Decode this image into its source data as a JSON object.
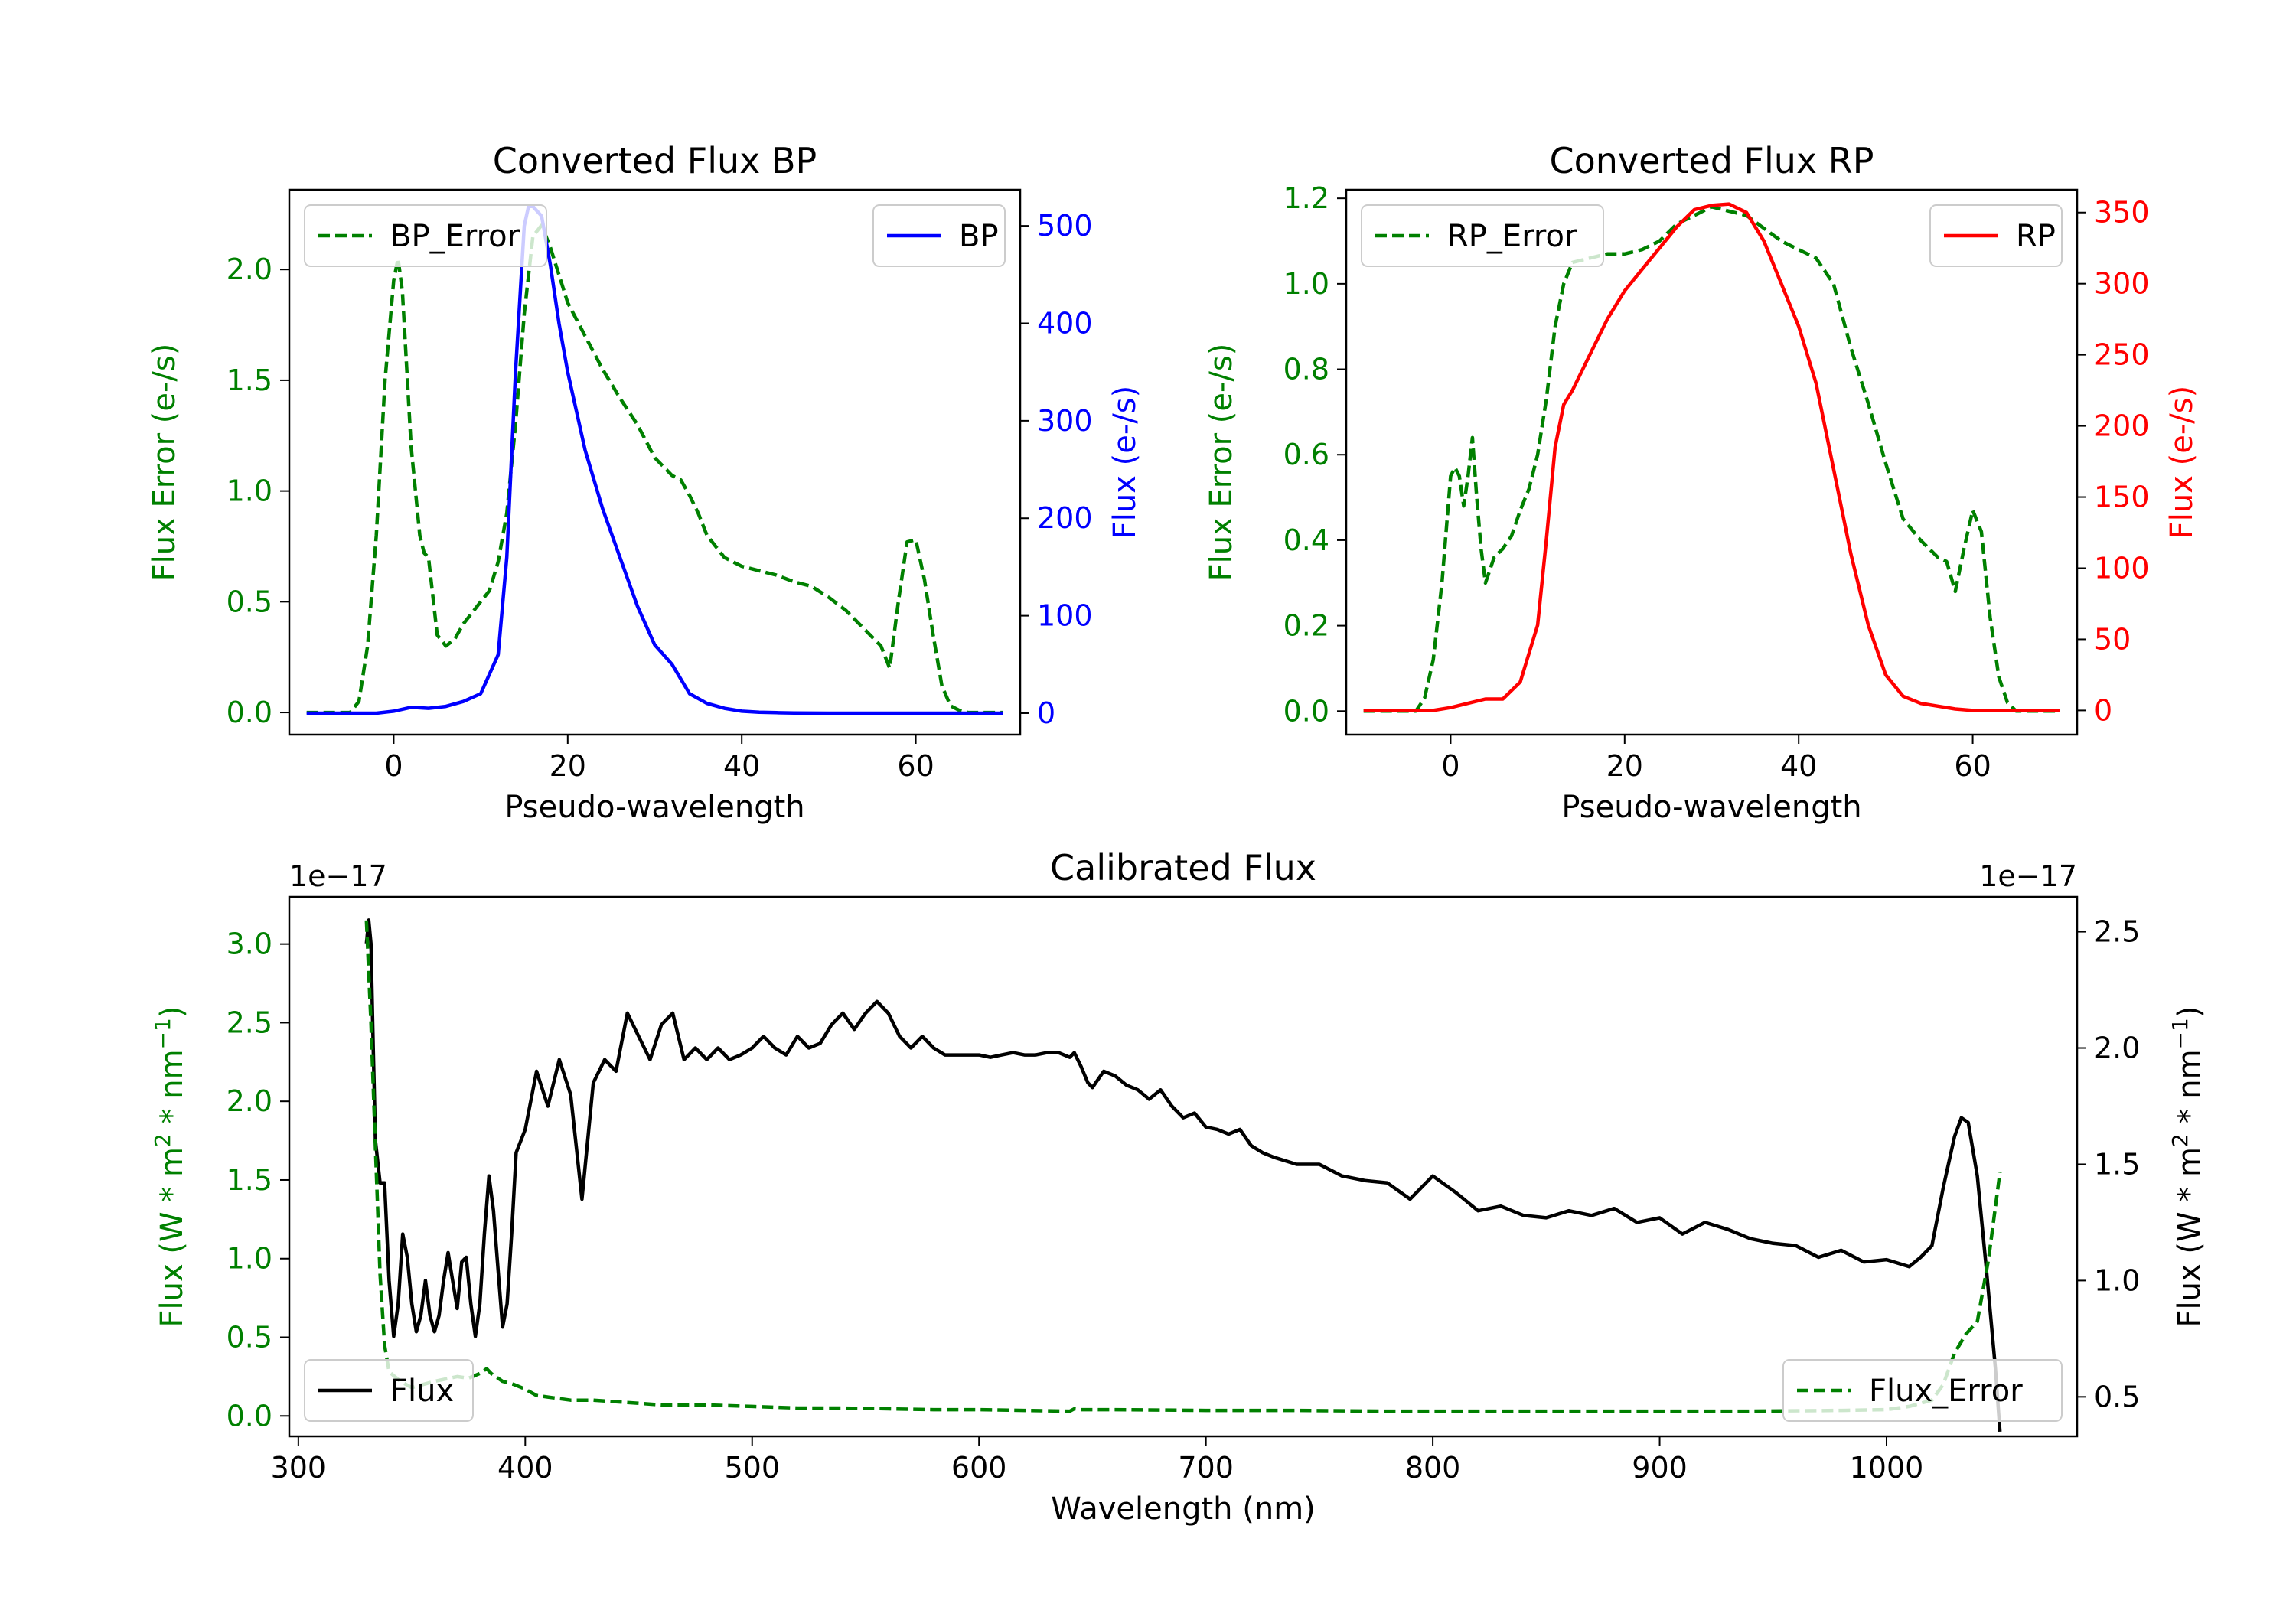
{
  "figure": {
    "colors": {
      "error": "#008000",
      "bp": "#0000ff",
      "rp": "#ff0000",
      "flux": "#000000",
      "axes": "#000000"
    }
  },
  "chart_data": [
    {
      "type": "line",
      "title": "Converted Flux BP",
      "xlabel": "Pseudo-wavelength",
      "ylabel_left": "Flux Error (e-/s)",
      "ylabel_right": "Flux (e-/s)",
      "xlim": [
        -12,
        72
      ],
      "xticks": [
        0,
        20,
        40,
        60
      ],
      "ylim_left": [
        -0.1,
        2.36
      ],
      "yticks_left": [
        0.0,
        0.5,
        1.0,
        1.5,
        2.0
      ],
      "ylim_right": [
        -22,
        537
      ],
      "yticks_right": [
        0,
        100,
        200,
        300,
        400,
        500
      ],
      "legend_left": {
        "label": "BP_Error",
        "position": "upper-left"
      },
      "legend_right": {
        "label": "BP",
        "position": "upper-right"
      },
      "series": [
        {
          "name": "BP_Error",
          "axis": "left",
          "style": "dashed",
          "color": "#008000",
          "x": [
            -10,
            -5,
            -4,
            -3,
            -2,
            -1,
            0,
            0.5,
            1,
            2,
            3,
            3.5,
            4,
            5,
            6,
            7,
            8,
            9,
            10,
            11,
            12,
            13,
            14,
            15,
            16,
            17,
            18,
            20,
            22,
            24,
            26,
            28,
            30,
            32,
            33,
            34,
            35,
            36,
            38,
            40,
            42,
            44,
            46,
            48,
            50,
            52,
            54,
            56,
            57,
            58,
            59,
            60,
            61,
            62,
            63,
            64,
            65,
            66,
            70
          ],
          "y": [
            0,
            0,
            0.05,
            0.3,
            0.8,
            1.5,
            1.95,
            2.05,
            1.9,
            1.2,
            0.8,
            0.72,
            0.7,
            0.35,
            0.3,
            0.33,
            0.4,
            0.45,
            0.5,
            0.55,
            0.68,
            0.9,
            1.3,
            1.8,
            2.15,
            2.2,
            2.1,
            1.85,
            1.7,
            1.55,
            1.42,
            1.3,
            1.15,
            1.07,
            1.05,
            0.98,
            0.9,
            0.8,
            0.7,
            0.66,
            0.64,
            0.62,
            0.59,
            0.57,
            0.52,
            0.46,
            0.38,
            0.3,
            0.2,
            0.5,
            0.77,
            0.78,
            0.6,
            0.35,
            0.12,
            0.03,
            0.01,
            0,
            0
          ]
        },
        {
          "name": "BP",
          "axis": "right",
          "style": "solid",
          "color": "#0000ff",
          "x": [
            -10,
            -2,
            0,
            2,
            4,
            6,
            8,
            10,
            12,
            13,
            14,
            15,
            15.5,
            16,
            17,
            18,
            19,
            20,
            22,
            24,
            26,
            28,
            30,
            32,
            34,
            36,
            38,
            40,
            42,
            44,
            46,
            48,
            50,
            55,
            60,
            65,
            70
          ],
          "y": [
            0,
            0,
            2,
            6,
            5,
            7,
            12,
            20,
            60,
            160,
            350,
            500,
            520,
            520,
            510,
            460,
            400,
            350,
            270,
            210,
            160,
            110,
            70,
            50,
            20,
            10,
            5,
            2,
            1,
            0.5,
            0.2,
            0.1,
            0,
            0,
            0,
            0,
            0
          ]
        }
      ]
    },
    {
      "type": "line",
      "title": "Converted Flux RP",
      "xlabel": "Pseudo-wavelength",
      "ylabel_left": "Flux Error (e-/s)",
      "ylabel_right": "Flux (e-/s)",
      "xlim": [
        -12,
        72
      ],
      "xticks": [
        0,
        20,
        40,
        60
      ],
      "ylim_left": [
        -0.055,
        1.22
      ],
      "yticks_left": [
        0.0,
        0.2,
        0.4,
        0.6,
        0.8,
        1.0,
        1.2
      ],
      "ylim_right": [
        -17,
        366
      ],
      "yticks_right": [
        0,
        50,
        100,
        150,
        200,
        250,
        300,
        350
      ],
      "legend_left": {
        "label": "RP_Error",
        "position": "upper-left"
      },
      "legend_right": {
        "label": "RP",
        "position": "upper-right"
      },
      "series": [
        {
          "name": "RP_Error",
          "axis": "left",
          "style": "dashed",
          "color": "#008000",
          "x": [
            -10,
            -4,
            -3,
            -2,
            -1,
            0,
            0.5,
            1,
            1.5,
            2,
            2.5,
            3,
            3.5,
            4,
            5,
            6,
            7,
            8,
            9,
            10,
            11,
            12,
            13,
            14,
            16,
            18,
            20,
            22,
            24,
            26,
            28,
            30,
            32,
            34,
            36,
            38,
            40,
            42,
            44,
            46,
            48,
            50,
            52,
            54,
            56,
            57,
            58,
            59,
            60,
            61,
            62,
            63,
            64,
            65,
            70
          ],
          "y": [
            0,
            0,
            0.03,
            0.12,
            0.3,
            0.55,
            0.57,
            0.55,
            0.48,
            0.55,
            0.64,
            0.5,
            0.38,
            0.3,
            0.36,
            0.38,
            0.41,
            0.47,
            0.52,
            0.6,
            0.73,
            0.9,
            1.0,
            1.05,
            1.06,
            1.07,
            1.07,
            1.08,
            1.1,
            1.14,
            1.16,
            1.18,
            1.17,
            1.16,
            1.13,
            1.1,
            1.08,
            1.06,
            1.0,
            0.85,
            0.72,
            0.58,
            0.45,
            0.4,
            0.36,
            0.35,
            0.28,
            0.38,
            0.47,
            0.42,
            0.22,
            0.08,
            0.02,
            0.0,
            0
          ]
        },
        {
          "name": "RP",
          "axis": "right",
          "style": "solid",
          "color": "#ff0000",
          "x": [
            -10,
            -2,
            0,
            2,
            4,
            6,
            8,
            10,
            11,
            12,
            13,
            14,
            16,
            18,
            20,
            22,
            24,
            26,
            28,
            30,
            32,
            34,
            36,
            38,
            40,
            42,
            44,
            46,
            48,
            50,
            52,
            54,
            56,
            58,
            60,
            62,
            65,
            70
          ],
          "y": [
            0,
            0,
            2,
            5,
            8,
            8,
            20,
            60,
            120,
            185,
            215,
            225,
            250,
            275,
            295,
            310,
            325,
            340,
            352,
            355,
            356,
            350,
            330,
            300,
            270,
            230,
            170,
            110,
            60,
            25,
            10,
            5,
            3,
            1,
            0,
            0,
            0,
            0
          ]
        }
      ]
    },
    {
      "type": "line",
      "title": "Calibrated Flux",
      "xlabel": "Wavelength (nm)",
      "ylabel_left": "Flux (W * m$^2$ * nm$^{-1}$)",
      "ylabel_right": "Flux (W * m$^2$ * nm$^{-1}$)",
      "offset_left": "1e−17",
      "offset_right": "1e−17",
      "xlim": [
        296,
        1084
      ],
      "xticks": [
        300,
        400,
        500,
        600,
        700,
        800,
        900,
        1000
      ],
      "ylim_left": [
        -0.13,
        3.3
      ],
      "yticks_left": [
        0.0,
        0.5,
        1.0,
        1.5,
        2.0,
        2.5,
        3.0
      ],
      "ylim_right": [
        0.33,
        2.65
      ],
      "yticks_right": [
        0.5,
        1.0,
        1.5,
        2.0,
        2.5
      ],
      "legend_left": {
        "label": "Flux",
        "position": "lower-left"
      },
      "legend_right": {
        "label": "Flux_Error",
        "position": "lower-right"
      },
      "series": [
        {
          "name": "Flux",
          "axis": "left_labelled_legend",
          "style": "solid",
          "color": "#000000",
          "x": [
            330,
            331,
            332,
            333,
            334,
            336,
            338,
            340,
            342,
            344,
            346,
            348,
            350,
            352,
            354,
            356,
            358,
            360,
            362,
            364,
            366,
            368,
            370,
            372,
            374,
            376,
            378,
            380,
            382,
            384,
            386,
            388,
            390,
            392,
            394,
            396,
            400,
            405,
            410,
            415,
            420,
            425,
            430,
            435,
            440,
            445,
            450,
            455,
            460,
            465,
            470,
            475,
            480,
            485,
            490,
            495,
            500,
            505,
            510,
            515,
            520,
            525,
            530,
            535,
            540,
            545,
            550,
            555,
            560,
            565,
            570,
            575,
            580,
            585,
            590,
            595,
            600,
            605,
            610,
            615,
            620,
            625,
            630,
            635,
            640,
            642,
            645,
            648,
            650,
            655,
            660,
            665,
            670,
            675,
            680,
            685,
            690,
            695,
            700,
            705,
            710,
            715,
            720,
            725,
            730,
            740,
            750,
            760,
            770,
            780,
            790,
            800,
            810,
            820,
            830,
            840,
            850,
            860,
            870,
            880,
            890,
            900,
            910,
            920,
            930,
            940,
            950,
            960,
            970,
            980,
            990,
            1000,
            1010,
            1015,
            1020,
            1025,
            1030,
            1033,
            1036,
            1040,
            1044,
            1048,
            1050
          ],
          "y": [
            2.45,
            2.55,
            2.45,
            2.0,
            1.6,
            1.42,
            1.42,
            1.0,
            0.76,
            0.9,
            1.2,
            1.1,
            0.9,
            0.78,
            0.85,
            1.0,
            0.85,
            0.78,
            0.85,
            1.0,
            1.12,
            1.0,
            0.88,
            1.08,
            1.1,
            0.9,
            0.76,
            0.9,
            1.2,
            1.45,
            1.3,
            1.05,
            0.8,
            0.9,
            1.2,
            1.55,
            1.65,
            1.9,
            1.75,
            1.95,
            1.8,
            1.35,
            1.85,
            1.95,
            1.9,
            2.15,
            2.05,
            1.95,
            2.1,
            2.15,
            1.95,
            2.0,
            1.95,
            2.0,
            1.95,
            1.97,
            2.0,
            2.05,
            2.0,
            1.97,
            2.05,
            2.0,
            2.02,
            2.1,
            2.15,
            2.08,
            2.15,
            2.2,
            2.15,
            2.05,
            2.0,
            2.05,
            2.0,
            1.97,
            1.97,
            1.97,
            1.97,
            1.96,
            1.97,
            1.98,
            1.97,
            1.97,
            1.98,
            1.98,
            1.96,
            1.98,
            1.92,
            1.85,
            1.83,
            1.9,
            1.88,
            1.84,
            1.82,
            1.78,
            1.82,
            1.75,
            1.7,
            1.72,
            1.66,
            1.65,
            1.63,
            1.65,
            1.58,
            1.55,
            1.53,
            1.5,
            1.5,
            1.45,
            1.43,
            1.42,
            1.35,
            1.45,
            1.38,
            1.3,
            1.32,
            1.28,
            1.27,
            1.3,
            1.28,
            1.31,
            1.25,
            1.27,
            1.2,
            1.25,
            1.22,
            1.18,
            1.16,
            1.15,
            1.1,
            1.13,
            1.08,
            1.09,
            1.06,
            1.1,
            1.15,
            1.4,
            1.62,
            1.7,
            1.68,
            1.45,
            1.05,
            0.62,
            0.35
          ]
        },
        {
          "name": "Flux_Error",
          "axis": "right_labelled_legend",
          "style": "dashed",
          "color": "#008000",
          "x": [
            330,
            332,
            334,
            336,
            338,
            340,
            345,
            350,
            355,
            360,
            370,
            375,
            380,
            383,
            385,
            390,
            395,
            400,
            405,
            410,
            420,
            430,
            440,
            450,
            460,
            470,
            480,
            500,
            520,
            540,
            560,
            580,
            600,
            620,
            640,
            642,
            645,
            660,
            700,
            740,
            780,
            820,
            860,
            900,
            940,
            980,
            1000,
            1010,
            1020,
            1025,
            1030,
            1035,
            1040,
            1045,
            1050
          ],
          "y": [
            3.15,
            2.5,
            1.7,
            0.9,
            0.45,
            0.28,
            0.22,
            0.18,
            0.2,
            0.22,
            0.25,
            0.24,
            0.27,
            0.3,
            0.27,
            0.22,
            0.2,
            0.17,
            0.13,
            0.12,
            0.1,
            0.1,
            0.09,
            0.08,
            0.07,
            0.07,
            0.07,
            0.06,
            0.05,
            0.05,
            0.045,
            0.04,
            0.04,
            0.035,
            0.03,
            0.045,
            0.04,
            0.04,
            0.035,
            0.035,
            0.03,
            0.03,
            0.03,
            0.03,
            0.03,
            0.035,
            0.04,
            0.06,
            0.1,
            0.2,
            0.4,
            0.52,
            0.6,
            1.0,
            1.55
          ]
        }
      ]
    }
  ]
}
